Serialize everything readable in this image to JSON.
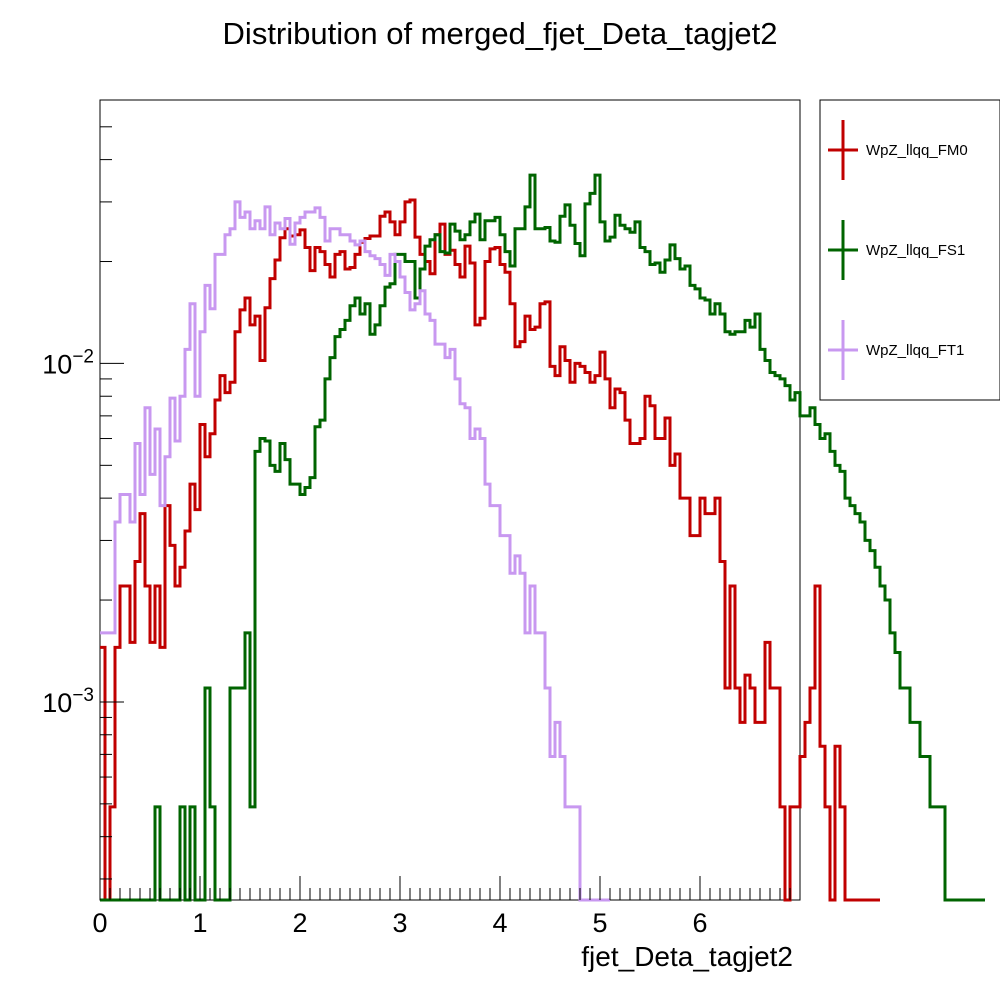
{
  "chart_data": {
    "type": "line",
    "title": "Distribution of merged_fjet_Deta_tagjet2",
    "xlabel": "fjet_Deta_tagjet2",
    "ylabel": "",
    "xlim": [
      0,
      7
    ],
    "ylim": [
      0.00026,
      0.06
    ],
    "yscale": "log",
    "grid": false,
    "legend_position": "right",
    "x_ticks": [
      0,
      1,
      2,
      3,
      4,
      5,
      6
    ],
    "x_tick_labels": [
      "0",
      "1",
      "2",
      "3",
      "4",
      "5",
      "6"
    ],
    "y_ticks": [
      0.001,
      0.01
    ],
    "y_tick_labels": [
      {
        "base": "10",
        "exp": "−3"
      },
      {
        "base": "10",
        "exp": "−2"
      }
    ],
    "bin_width": 0.05,
    "x_start": 0,
    "series": [
      {
        "name": "WpZ_llqq_FM0",
        "color": "#c00000",
        "values": [
          0.00145,
          0.00026,
          0.00049,
          0.00145,
          0.0022,
          0.0022,
          0.0015,
          0.0026,
          0.0036,
          0.0022,
          0.0015,
          0.0022,
          0.00145,
          0.0038,
          0.0029,
          0.0022,
          0.0025,
          0.0032,
          0.0044,
          0.0037,
          0.0066,
          0.0053,
          0.0062,
          0.0078,
          0.0092,
          0.0082,
          0.0088,
          0.0124,
          0.0144,
          0.0156,
          0.013,
          0.0138,
          0.0102,
          0.0146,
          0.0178,
          0.0202,
          0.0235,
          0.025,
          0.0238,
          0.024,
          0.0248,
          0.022,
          0.0188,
          0.022,
          0.0214,
          0.0196,
          0.018,
          0.021,
          0.0214,
          0.019,
          0.0192,
          0.021,
          0.0228,
          0.0234,
          0.0238,
          0.0238,
          0.0272,
          0.028,
          0.0262,
          0.024,
          0.0262,
          0.03,
          0.0304,
          0.0236,
          0.021,
          0.02,
          0.0184,
          0.024,
          0.0258,
          0.021,
          0.0216,
          0.0196,
          0.018,
          0.0222,
          0.0198,
          0.013,
          0.0136,
          0.02,
          0.0218,
          0.022,
          0.0196,
          0.0186,
          0.015,
          0.0112,
          0.0116,
          0.0138,
          0.0126,
          0.0128,
          0.015,
          0.0152,
          0.0098,
          0.0092,
          0.0112,
          0.0102,
          0.0088,
          0.01,
          0.0098,
          0.0094,
          0.0088,
          0.0092,
          0.0108,
          0.009,
          0.0074,
          0.0084,
          0.0082,
          0.0068,
          0.0058,
          0.0058,
          0.006,
          0.008,
          0.0075,
          0.006,
          0.006,
          0.0069,
          0.005,
          0.0054,
          0.004,
          0.004,
          0.0031,
          0.0031,
          0.004,
          0.0036,
          0.0036,
          0.004,
          0.0026,
          0.0011,
          0.0022,
          0.0011,
          0.00087,
          0.0012,
          0.0011,
          0.00087,
          0.00087,
          0.0015,
          0.0011,
          0.0011,
          0.00049,
          0.00026,
          0.00049,
          0.00049,
          0.00069,
          0.00087,
          0.0011,
          0.0022,
          0.00074,
          0.00049,
          0.00026,
          0.00074,
          0.00049,
          0.00026,
          0.00026,
          0.00026,
          0.00026,
          0.00026,
          0.00026,
          0.00026
        ]
      },
      {
        "name": "WpZ_llqq_FS1",
        "color": "#006400",
        "values": [
          0.00026,
          0.00026,
          0.00026,
          0.00026,
          0.00026,
          0.00026,
          0.00026,
          0.00026,
          0.00026,
          0.00026,
          0.00026,
          0.00049,
          0.00026,
          0.00026,
          0.00026,
          0.00026,
          0.00049,
          0.00026,
          0.00049,
          0.00026,
          0.00026,
          0.0011,
          0.00049,
          0.00026,
          0.00026,
          0.00026,
          0.0011,
          0.0011,
          0.0011,
          0.0016,
          0.00049,
          0.0055,
          0.006,
          0.0059,
          0.005,
          0.0048,
          0.0058,
          0.0052,
          0.0044,
          0.0044,
          0.0041,
          0.0043,
          0.0046,
          0.0065,
          0.0068,
          0.009,
          0.0104,
          0.012,
          0.0126,
          0.0134,
          0.0148,
          0.0156,
          0.014,
          0.015,
          0.0122,
          0.013,
          0.0148,
          0.0168,
          0.0172,
          0.021,
          0.021,
          0.02,
          0.02,
          0.0156,
          0.019,
          0.0222,
          0.0232,
          0.024,
          0.0214,
          0.0212,
          0.0258,
          0.0246,
          0.0232,
          0.024,
          0.0262,
          0.0276,
          0.0232,
          0.0264,
          0.0264,
          0.027,
          0.024,
          0.0214,
          0.0194,
          0.025,
          0.025,
          0.029,
          0.036,
          0.025,
          0.025,
          0.0252,
          0.023,
          0.0228,
          0.0272,
          0.0294,
          0.0256,
          0.0226,
          0.0208,
          0.0296,
          0.0318,
          0.036,
          0.0262,
          0.023,
          0.0236,
          0.0274,
          0.0256,
          0.025,
          0.0244,
          0.0262,
          0.022,
          0.0214,
          0.0196,
          0.0198,
          0.0186,
          0.0202,
          0.0224,
          0.0204,
          0.019,
          0.0194,
          0.017,
          0.0166,
          0.0156,
          0.0154,
          0.014,
          0.015,
          0.014,
          0.0124,
          0.0122,
          0.0124,
          0.0124,
          0.0134,
          0.0128,
          0.014,
          0.011,
          0.0102,
          0.0094,
          0.0092,
          0.009,
          0.0086,
          0.0078,
          0.0082,
          0.007,
          0.007,
          0.0074,
          0.0066,
          0.006,
          0.0062,
          0.0055,
          0.005,
          0.0048,
          0.004,
          0.0038,
          0.0036,
          0.0034,
          0.003,
          0.0028,
          0.0025,
          0.0022,
          0.002,
          0.0016,
          0.0014,
          0.0011,
          0.0011,
          0.00087,
          0.00087,
          0.00069,
          0.00069,
          0.00049,
          0.00049,
          0.00049,
          0.00026,
          0.00026,
          0.00026,
          0.00026,
          0.00026,
          0.00026,
          0.00026,
          0.00026
        ]
      },
      {
        "name": "WpZ_llqq_FT1",
        "color": "#c898f0",
        "values": [
          0.0016,
          0.0016,
          0.0016,
          0.0034,
          0.0041,
          0.0041,
          0.0034,
          0.0058,
          0.0041,
          0.0074,
          0.0047,
          0.0064,
          0.0038,
          0.0053,
          0.0079,
          0.0059,
          0.008,
          0.011,
          0.015,
          0.008,
          0.0124,
          0.017,
          0.0145,
          0.021,
          0.021,
          0.024,
          0.025,
          0.03,
          0.027,
          0.028,
          0.025,
          0.0264,
          0.025,
          0.029,
          0.024,
          0.026,
          0.025,
          0.0268,
          0.0225,
          0.026,
          0.027,
          0.028,
          0.028,
          0.0288,
          0.027,
          0.023,
          0.025,
          0.025,
          0.024,
          0.024,
          0.023,
          0.0224,
          0.023,
          0.0214,
          0.0208,
          0.0204,
          0.0196,
          0.0182,
          0.021,
          0.02,
          0.018,
          0.0162,
          0.0144,
          0.015,
          0.0164,
          0.014,
          0.0134,
          0.0114,
          0.0114,
          0.0104,
          0.011,
          0.009,
          0.0076,
          0.0074,
          0.006,
          0.0064,
          0.006,
          0.0044,
          0.0038,
          0.0038,
          0.0031,
          0.0031,
          0.0024,
          0.0027,
          0.0024,
          0.0016,
          0.0022,
          0.0016,
          0.0016,
          0.0011,
          0.00069,
          0.00087,
          0.00069,
          0.00049,
          0.00049,
          0.00049,
          0.00026,
          0.00026,
          0.00026,
          0.00026,
          0.00026,
          0.00026
        ]
      }
    ]
  }
}
